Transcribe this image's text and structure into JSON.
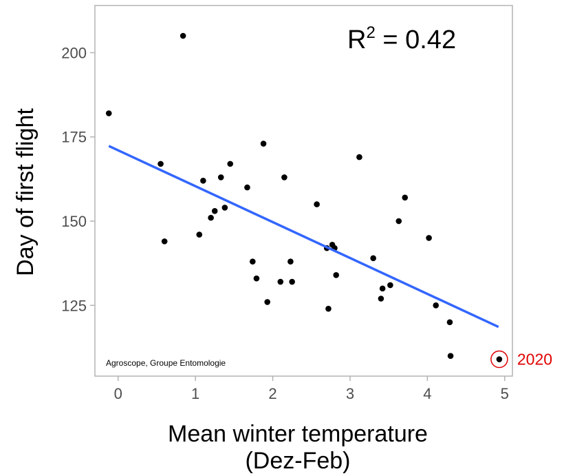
{
  "chart_data": {
    "type": "scatter",
    "xlabel": "Mean winter temperature",
    "xlabel_sub": "(Dez-Feb)",
    "ylabel": "Day of first flight",
    "xlim": [
      -0.3,
      5.1
    ],
    "ylim": [
      104,
      214
    ],
    "xticks": [
      0,
      1,
      2,
      3,
      4,
      5
    ],
    "yticks": [
      125,
      150,
      175,
      200
    ],
    "grid": false,
    "annotation": {
      "prefix": "R",
      "superscript": "2",
      "suffix": " = 0.42"
    },
    "credit": "Agroscope, Groupe Entomologie",
    "trendline": {
      "x": [
        -0.12,
        4.92
      ],
      "y": [
        172.3,
        118.6
      ],
      "color": "#3366ff"
    },
    "point_color": "#000000",
    "highlight": {
      "x": 4.93,
      "y": 109,
      "label": "2020",
      "color": "#e00000"
    },
    "points": [
      [
        -0.12,
        182
      ],
      [
        0.55,
        167
      ],
      [
        0.6,
        144
      ],
      [
        0.84,
        205
      ],
      [
        1.05,
        146
      ],
      [
        1.1,
        162
      ],
      [
        1.2,
        151
      ],
      [
        1.25,
        153
      ],
      [
        1.33,
        163
      ],
      [
        1.38,
        154
      ],
      [
        1.45,
        167
      ],
      [
        1.67,
        160
      ],
      [
        1.74,
        138
      ],
      [
        1.79,
        133
      ],
      [
        1.88,
        173
      ],
      [
        1.93,
        126
      ],
      [
        2.1,
        132
      ],
      [
        2.15,
        163
      ],
      [
        2.23,
        138
      ],
      [
        2.25,
        132
      ],
      [
        2.57,
        155
      ],
      [
        2.7,
        142
      ],
      [
        2.72,
        124
      ],
      [
        2.77,
        143
      ],
      [
        2.8,
        142
      ],
      [
        2.82,
        134
      ],
      [
        3.12,
        169
      ],
      [
        3.3,
        139
      ],
      [
        3.4,
        127
      ],
      [
        3.42,
        130
      ],
      [
        3.52,
        131
      ],
      [
        3.63,
        150
      ],
      [
        3.71,
        157
      ],
      [
        4.02,
        145
      ],
      [
        4.11,
        125
      ],
      [
        4.29,
        120
      ],
      [
        4.3,
        110
      ],
      [
        4.93,
        109
      ]
    ]
  }
}
